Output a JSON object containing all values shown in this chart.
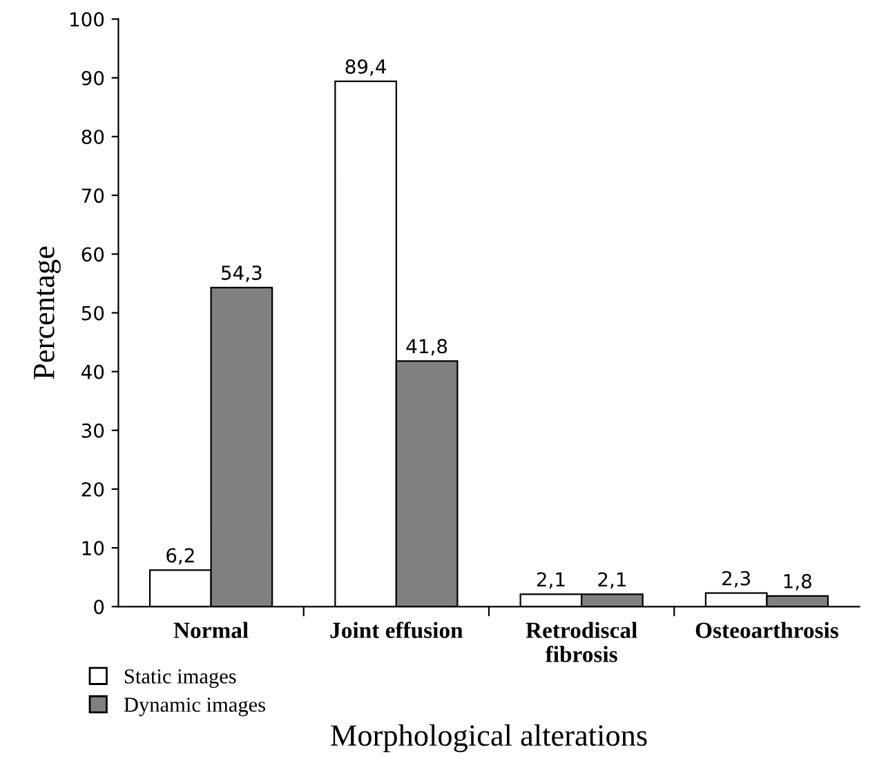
{
  "chart_data": {
    "type": "bar",
    "xlabel": "Morphological alterations",
    "ylabel": "Percentage",
    "categories": [
      "Normal",
      "Joint effusion",
      "Retrodiscal\nfibrosis",
      "Osteoarthrosis"
    ],
    "series": [
      {
        "name": "Static images",
        "color": "#ffffff",
        "values": [
          6.2,
          89.4,
          2.1,
          2.3
        ],
        "value_labels": [
          "6,2",
          "89,4",
          "2,1",
          "2,3"
        ]
      },
      {
        "name": "Dynamic images",
        "color": "#808080",
        "values": [
          54.3,
          41.8,
          2.1,
          1.8
        ],
        "value_labels": [
          "54,3",
          "41,8",
          "2,1",
          "1,8"
        ]
      }
    ],
    "ylim": [
      0,
      100
    ],
    "yticks": [
      0,
      10,
      20,
      30,
      40,
      50,
      60,
      70,
      80,
      90,
      100
    ],
    "grid": false,
    "legend": "bottom left"
  }
}
